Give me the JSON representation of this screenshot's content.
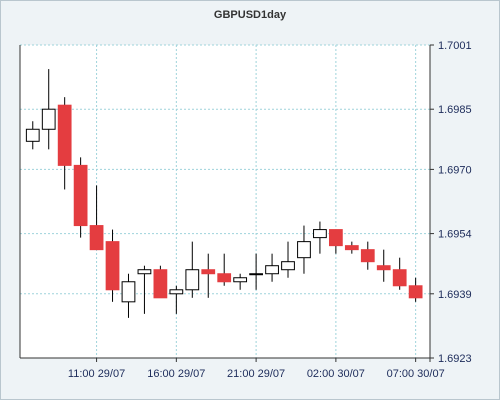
{
  "chart_data": {
    "type": "candlestick",
    "title": "GBPUSD1day",
    "xlabel": "",
    "ylabel": "",
    "ylim": [
      1.6923,
      1.7001
    ],
    "yticks": [
      "1.7001",
      "1.6985",
      "1.6970",
      "1.6954",
      "1.6939",
      "1.6923"
    ],
    "xticks": [
      {
        "index": 4,
        "label": "11:00 29/07"
      },
      {
        "index": 9,
        "label": "16:00 29/07"
      },
      {
        "index": 14,
        "label": "21:00 29/07"
      },
      {
        "index": 19,
        "label": "02:00 30/07"
      },
      {
        "index": 24,
        "label": "07:00 30/07"
      }
    ],
    "grid": true,
    "band": [
      1.697,
      1.6985
    ],
    "colors": {
      "up": "#ffffff",
      "down": "#e43d40",
      "outline": "#000000",
      "grid": "#9fd3db",
      "plot_bg": "#ffffff",
      "band": "#ffffff"
    },
    "candles": [
      {
        "open": 1.6977,
        "high": 1.6982,
        "low": 1.6975,
        "close": 1.698
      },
      {
        "open": 1.698,
        "high": 1.6995,
        "low": 1.6975,
        "close": 1.6985
      },
      {
        "open": 1.6986,
        "high": 1.6988,
        "low": 1.6965,
        "close": 1.6971
      },
      {
        "open": 1.6971,
        "high": 1.6973,
        "low": 1.6953,
        "close": 1.6956
      },
      {
        "open": 1.6956,
        "high": 1.6966,
        "low": 1.695,
        "close": 1.695
      },
      {
        "open": 1.6952,
        "high": 1.6955,
        "low": 1.6937,
        "close": 1.694
      },
      {
        "open": 1.6937,
        "high": 1.6944,
        "low": 1.6933,
        "close": 1.6942
      },
      {
        "open": 1.6944,
        "high": 1.6946,
        "low": 1.6934,
        "close": 1.6945
      },
      {
        "open": 1.6945,
        "high": 1.6946,
        "low": 1.6938,
        "close": 1.6938
      },
      {
        "open": 1.6939,
        "high": 1.6941,
        "low": 1.6934,
        "close": 1.694
      },
      {
        "open": 1.694,
        "high": 1.6952,
        "low": 1.6938,
        "close": 1.6945
      },
      {
        "open": 1.6945,
        "high": 1.6949,
        "low": 1.6938,
        "close": 1.6944
      },
      {
        "open": 1.6944,
        "high": 1.6949,
        "low": 1.6941,
        "close": 1.6942
      },
      {
        "open": 1.6942,
        "high": 1.6944,
        "low": 1.694,
        "close": 1.6943
      },
      {
        "open": 1.6944,
        "high": 1.6949,
        "low": 1.694,
        "close": 1.6944
      },
      {
        "open": 1.6944,
        "high": 1.6949,
        "low": 1.6942,
        "close": 1.6946
      },
      {
        "open": 1.6945,
        "high": 1.6952,
        "low": 1.6943,
        "close": 1.6947
      },
      {
        "open": 1.6948,
        "high": 1.6956,
        "low": 1.6944,
        "close": 1.6952
      },
      {
        "open": 1.6953,
        "high": 1.6957,
        "low": 1.6949,
        "close": 1.6955
      },
      {
        "open": 1.6955,
        "high": 1.6955,
        "low": 1.6949,
        "close": 1.6951
      },
      {
        "open": 1.6951,
        "high": 1.6952,
        "low": 1.6949,
        "close": 1.695
      },
      {
        "open": 1.695,
        "high": 1.6952,
        "low": 1.6945,
        "close": 1.6947
      },
      {
        "open": 1.6946,
        "high": 1.695,
        "low": 1.6942,
        "close": 1.6945
      },
      {
        "open": 1.6945,
        "high": 1.6948,
        "low": 1.694,
        "close": 1.6941
      },
      {
        "open": 1.6941,
        "high": 1.6943,
        "low": 1.6937,
        "close": 1.6938
      }
    ]
  }
}
